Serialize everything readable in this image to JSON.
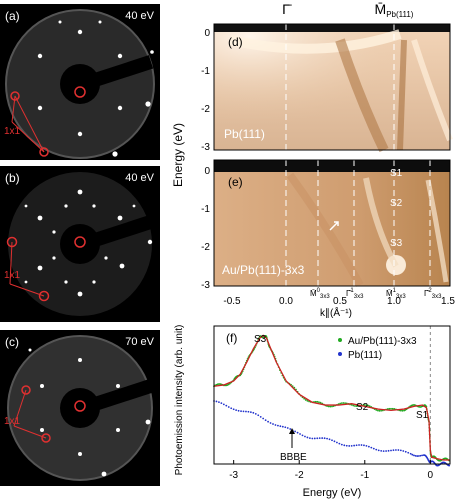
{
  "leed_panels": [
    {
      "label": "(a)",
      "energy": "40 eV",
      "note": "1x1"
    },
    {
      "label": "(b)",
      "energy": "40 eV",
      "note": "1x1"
    },
    {
      "label": "(c)",
      "energy": "70 eV",
      "note": "1x1"
    }
  ],
  "arpes": {
    "top_labels": {
      "gamma": "Γ̄",
      "m_symbol": "M̄",
      "m_sub": "Pb(111)"
    },
    "panel_d": {
      "label": "(d)",
      "sample": "Pb(111)"
    },
    "panel_e": {
      "label": "(e)",
      "sample": "Au/Pb(111)-3x3",
      "states": [
        "S1",
        "S2",
        "S3"
      ]
    },
    "bottom_marks": [
      {
        "sym": "M̄",
        "sub": "3x3",
        "sup": "0"
      },
      {
        "sym": "Γ̄",
        "sub": "3x3",
        "sup": "1"
      },
      {
        "sym": "M̄",
        "sub": "3x3",
        "sup": "1"
      },
      {
        "sym": "Γ̄",
        "sub": "3x3",
        "sup": "2"
      }
    ],
    "ylabel": "Energy (eV)",
    "xlabel": "k∥(Å⁻¹)",
    "xticks": [
      "-0.5",
      "0.0",
      "0.5",
      "1.0",
      "1.5"
    ],
    "yticks_d": [
      "0",
      "-1",
      "-2",
      "-3"
    ],
    "yticks_e": [
      "0",
      "-1",
      "-2",
      "-3"
    ]
  },
  "chart_data": {
    "type": "line",
    "panel": "(f)",
    "xlabel": "Energy (eV)",
    "ylabel": "Photoemission intensity (arb. unit)",
    "xlim": [
      -3.3,
      0.3
    ],
    "xticks": [
      "-3",
      "-2",
      "-1",
      "0"
    ],
    "series": [
      {
        "name": "Au/Pb(111)-3x3",
        "color": "#22aa22",
        "fit_color": "#cc2222",
        "x": [
          -3.3,
          -3.15,
          -3.0,
          -2.9,
          -2.8,
          -2.7,
          -2.6,
          -2.55,
          -2.5,
          -2.45,
          -2.35,
          -2.2,
          -2.0,
          -1.8,
          -1.6,
          -1.4,
          -1.2,
          -1.0,
          -0.8,
          -0.6,
          -0.4,
          -0.25,
          -0.12,
          -0.06,
          -0.02,
          0.0,
          0.02,
          0.1,
          0.2,
          0.3
        ],
        "values": [
          0.58,
          0.59,
          0.62,
          0.67,
          0.76,
          0.86,
          0.94,
          0.96,
          0.94,
          0.88,
          0.76,
          0.62,
          0.52,
          0.46,
          0.44,
          0.44,
          0.45,
          0.43,
          0.41,
          0.4,
          0.41,
          0.43,
          0.44,
          0.42,
          0.32,
          0.1,
          0.05,
          0.04,
          0.03,
          0.03
        ]
      },
      {
        "name": "Pb(111)",
        "color": "#2233cc",
        "x": [
          -3.3,
          -3.0,
          -2.7,
          -2.4,
          -2.1,
          -1.8,
          -1.5,
          -1.2,
          -0.9,
          -0.6,
          -0.3,
          -0.1,
          -0.02,
          0.02,
          0.1,
          0.2,
          0.3
        ],
        "values": [
          0.46,
          0.42,
          0.37,
          0.31,
          0.24,
          0.2,
          0.17,
          0.14,
          0.12,
          0.1,
          0.08,
          0.06,
          0.03,
          0.01,
          0.0,
          0.0,
          0.0
        ]
      }
    ],
    "annotations": [
      "S3",
      "S2",
      "S1",
      "BBBE"
    ]
  }
}
